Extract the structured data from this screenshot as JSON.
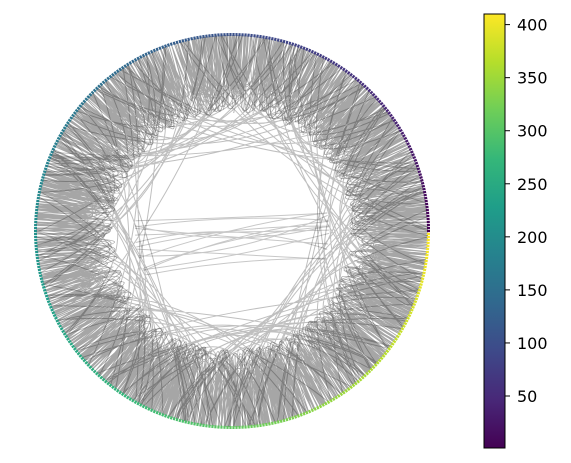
{
  "chart_data": {
    "type": "chord",
    "node_count": 410,
    "colormap": {
      "name": "viridis",
      "stops": [
        "#440154",
        "#482878",
        "#3e4989",
        "#31688e",
        "#26828e",
        "#1f9e89",
        "#35b779",
        "#6ece58",
        "#b5de2b",
        "#fde725"
      ]
    },
    "link_color": "#000000",
    "colorbar": {
      "range": [
        1,
        410
      ],
      "ticks": [
        50,
        100,
        150,
        200,
        250,
        300,
        350,
        400
      ],
      "tick_labels": [
        "50",
        "100",
        "150",
        "200",
        "250",
        "300",
        "350",
        "400"
      ]
    }
  }
}
